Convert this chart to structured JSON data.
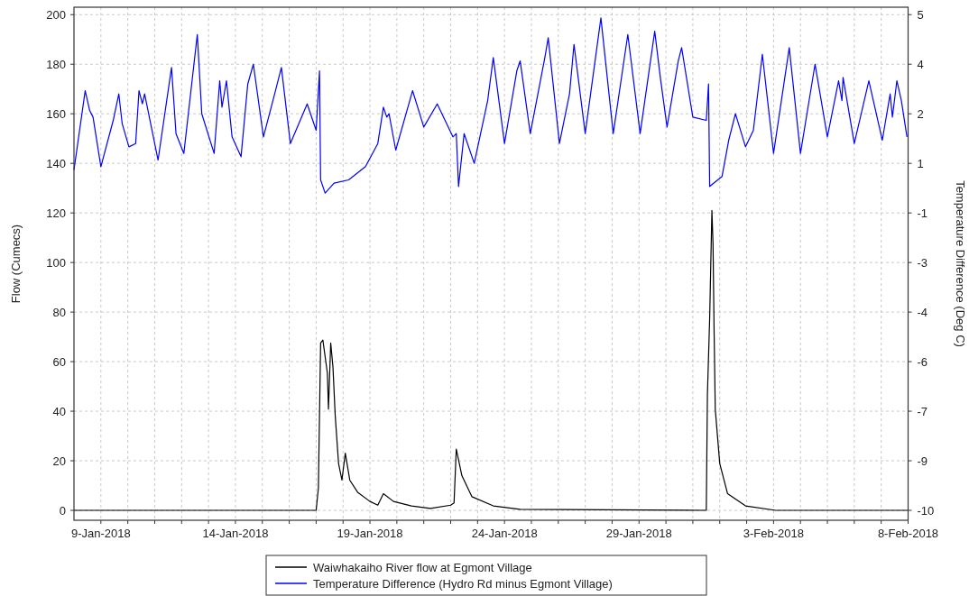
{
  "chart_data": {
    "type": "line",
    "xlabel": null,
    "ylabel": "Flow (Cumecs)",
    "y2label": "Temperature Difference (Deg C)",
    "xlim": [
      "2018-01-08",
      "2018-02-08"
    ],
    "xticks": [
      {
        "value": "2018-01-09",
        "label": "9-Jan-2018"
      },
      {
        "value": "2018-01-10",
        "label": null
      },
      {
        "value": "2018-01-11",
        "label": null
      },
      {
        "value": "2018-01-12",
        "label": null
      },
      {
        "value": "2018-01-13",
        "label": null
      },
      {
        "value": "2018-01-14",
        "label": "14-Jan-2018"
      },
      {
        "value": "2018-01-15",
        "label": null
      },
      {
        "value": "2018-01-16",
        "label": null
      },
      {
        "value": "2018-01-17",
        "label": null
      },
      {
        "value": "2018-01-18",
        "label": null
      },
      {
        "value": "2018-01-19",
        "label": "19-Jan-2018"
      },
      {
        "value": "2018-01-20",
        "label": null
      },
      {
        "value": "2018-01-21",
        "label": null
      },
      {
        "value": "2018-01-22",
        "label": null
      },
      {
        "value": "2018-01-23",
        "label": null
      },
      {
        "value": "2018-01-24",
        "label": "24-Jan-2018"
      },
      {
        "value": "2018-01-25",
        "label": null
      },
      {
        "value": "2018-01-26",
        "label": null
      },
      {
        "value": "2018-01-27",
        "label": null
      },
      {
        "value": "2018-01-28",
        "label": null
      },
      {
        "value": "2018-01-29",
        "label": "29-Jan-2018"
      },
      {
        "value": "2018-01-30",
        "label": null
      },
      {
        "value": "2018-01-31",
        "label": null
      },
      {
        "value": "2018-02-01",
        "label": null
      },
      {
        "value": "2018-02-02",
        "label": null
      },
      {
        "value": "2018-02-03",
        "label": "3-Feb-2018"
      },
      {
        "value": "2018-02-04",
        "label": null
      },
      {
        "value": "2018-02-05",
        "label": null
      },
      {
        "value": "2018-02-06",
        "label": null
      },
      {
        "value": "2018-02-07",
        "label": null
      },
      {
        "value": "2018-02-08",
        "label": "8-Feb-2018"
      }
    ],
    "ylim": [
      -4,
      203
    ],
    "yticks": [
      0,
      20,
      40,
      60,
      80,
      100,
      120,
      140,
      160,
      180,
      200
    ],
    "y2lim": [
      -10.3,
      5.225
    ],
    "y2ticks": [
      {
        "value": 5,
        "label": "5"
      },
      {
        "value": 3.5,
        "label": "4"
      },
      {
        "value": 2,
        "label": "2"
      },
      {
        "value": 0.5,
        "label": "1"
      },
      {
        "value": -1,
        "label": "-1"
      },
      {
        "value": -2.5,
        "label": "-3"
      },
      {
        "value": -4,
        "label": "-4"
      },
      {
        "value": -5.5,
        "label": "-6"
      },
      {
        "value": -7,
        "label": "-7"
      },
      {
        "value": -8.5,
        "label": "-9"
      },
      {
        "value": -10,
        "label": "-10"
      }
    ],
    "grid": true,
    "legend": "bottom",
    "line_style": "solid",
    "marker": "none",
    "series": [
      {
        "name": "Waiwhakaiho River flow at Egmont Village",
        "color": "#000000",
        "x": [
          "2018-01-08T00:00",
          "2018-01-17T00:00",
          "2018-01-17T02:00",
          "2018-01-17T04:00",
          "2018-01-17T06:00",
          "2018-01-17T10:00",
          "2018-01-17T11:00",
          "2018-01-17T13:00",
          "2018-01-17T15:00",
          "2018-01-17T17:00",
          "2018-01-17T20:00",
          "2018-01-17T23:00",
          "2018-01-18T02:00",
          "2018-01-18T06:00",
          "2018-01-18T13:00",
          "2018-01-19T00:00",
          "2018-01-19T07:00",
          "2018-01-19T12:00",
          "2018-01-19T21:00",
          "2018-01-20T13:00",
          "2018-01-21T06:00",
          "2018-01-22T00:00",
          "2018-01-22T03:00",
          "2018-01-22T05:00",
          "2018-01-22T10:00",
          "2018-01-22T19:00",
          "2018-01-23T14:00",
          "2018-01-24T14:00",
          "2018-01-31T12:00",
          "2018-01-31T13:00",
          "2018-01-31T15:00",
          "2018-01-31T17:00",
          "2018-01-31T18:00",
          "2018-01-31T19:00",
          "2018-01-31T20:00",
          "2018-02-01T00:00",
          "2018-02-01T07:00",
          "2018-02-01T23:00",
          "2018-02-03T02:00",
          "2018-02-08T00:00"
        ],
        "values": [
          0,
          0,
          9,
          67.5,
          68.7,
          55.4,
          40.8,
          67.5,
          57.8,
          38.3,
          18.9,
          12.2,
          23.1,
          12.2,
          7.3,
          3.6,
          2.1,
          6.7,
          3.6,
          1.8,
          0.8,
          2.1,
          3,
          24.7,
          14,
          5.5,
          1.8,
          0.4,
          0,
          46.8,
          77.3,
          121,
          107.7,
          71.2,
          40.8,
          18.9,
          6.7,
          1.8,
          0,
          0
        ]
      },
      {
        "name": "Temperature Difference (Hydro Rd minus Egmont Village)",
        "color": "#0000ff",
        "axis": "y2",
        "x": [
          "2018-01-08T00:00",
          "2018-01-08T10:00",
          "2018-01-08T14:00",
          "2018-01-08T17:00",
          "2018-01-09T00:00",
          "2018-01-09T11:00",
          "2018-01-09T16:00",
          "2018-01-09T19:00",
          "2018-01-10T01:00",
          "2018-01-10T07:00",
          "2018-01-10T10:00",
          "2018-01-10T13:00",
          "2018-01-10T15:00",
          "2018-01-11T03:00",
          "2018-01-11T15:00",
          "2018-01-11T19:00",
          "2018-01-12T02:00",
          "2018-01-12T14:00",
          "2018-01-12T18:00",
          "2018-01-13T05:00",
          "2018-01-13T10:00",
          "2018-01-13T12:00",
          "2018-01-13T16:00",
          "2018-01-13T21:00",
          "2018-01-14T05:00",
          "2018-01-14T11:00",
          "2018-01-14T16:00",
          "2018-01-15T01:00",
          "2018-01-15T11:00",
          "2018-01-15T17:00",
          "2018-01-16T01:00",
          "2018-01-16T16:00",
          "2018-01-17T00:00",
          "2018-01-17T03:00",
          "2018-01-17T04:00",
          "2018-01-17T08:00",
          "2018-01-17T16:00",
          "2018-01-18T05:00",
          "2018-01-18T20:00",
          "2018-01-19T07:00",
          "2018-01-19T12:00",
          "2018-01-19T15:00",
          "2018-01-19T17:00",
          "2018-01-19T23:00",
          "2018-01-20T14:00",
          "2018-01-21T00:00",
          "2018-01-21T12:00",
          "2018-01-22T02:00",
          "2018-01-22T05:00",
          "2018-01-22T07:00",
          "2018-01-22T12:00",
          "2018-01-22T21:00",
          "2018-01-23T09:00",
          "2018-01-23T14:00",
          "2018-01-24T00:00",
          "2018-01-24T11:00",
          "2018-01-24T14:00",
          "2018-01-24T23:00",
          "2018-01-25T12:00",
          "2018-01-25T15:00",
          "2018-01-26T01:00",
          "2018-01-26T10:00",
          "2018-01-26T14:00",
          "2018-01-27T00:00",
          "2018-01-27T14:00",
          "2018-01-28T01:00",
          "2018-01-28T14:00",
          "2018-01-29T01:00",
          "2018-01-29T14:00",
          "2018-01-29T19:00",
          "2018-01-30T01:00",
          "2018-01-30T11:00",
          "2018-01-30T14:00",
          "2018-01-31T00:00",
          "2018-01-31T12:00",
          "2018-01-31T14:00",
          "2018-01-31T15:00",
          "2018-02-01T02:00",
          "2018-02-01T08:00",
          "2018-02-01T14:00",
          "2018-02-01T23:00",
          "2018-02-02T06:00",
          "2018-02-02T14:00",
          "2018-02-03T00:00",
          "2018-02-03T14:00",
          "2018-02-04T00:00",
          "2018-02-04T13:00",
          "2018-02-05T00:00",
          "2018-02-05T10:00",
          "2018-02-05T13:00",
          "2018-02-05T14:00",
          "2018-02-06T00:00",
          "2018-02-06T13:00",
          "2018-02-07T01:00",
          "2018-02-07T08:00",
          "2018-02-07T10:00",
          "2018-02-07T14:00",
          "2018-02-07T18:00",
          "2018-02-07T23:00"
        ],
        "values": [
          0.3,
          2.7,
          2.1,
          1.9,
          0.4,
          1.8,
          2.6,
          1.7,
          1,
          1.1,
          2.7,
          2.3,
          2.6,
          0.6,
          3.4,
          1.4,
          0.8,
          4.4,
          2,
          0.8,
          3,
          2.2,
          3,
          1.3,
          0.7,
          2.9,
          3.5,
          1.3,
          2.6,
          3.4,
          1.1,
          2.3,
          1.5,
          3.3,
          0,
          -0.4,
          -0.1,
          0,
          0.4,
          1.1,
          2.2,
          1.9,
          2,
          0.9,
          2.7,
          1.6,
          2.3,
          1.3,
          1.4,
          -0.2,
          1.4,
          0.5,
          2.4,
          3.7,
          1.1,
          3.3,
          3.6,
          1.4,
          3.7,
          4.3,
          1.1,
          2.6,
          4.1,
          1.4,
          4.9,
          1.4,
          4.4,
          1.4,
          4.5,
          3.1,
          1.6,
          3.6,
          4,
          1.9,
          1.8,
          2.9,
          -0.2,
          0.1,
          1.2,
          2,
          1,
          1.5,
          3.8,
          0.8,
          4,
          0.8,
          3.5,
          1.3,
          3,
          2.4,
          3.1,
          1.1,
          3,
          1.2,
          2.6,
          1.9,
          3,
          2.4,
          1.3
        ]
      }
    ]
  }
}
